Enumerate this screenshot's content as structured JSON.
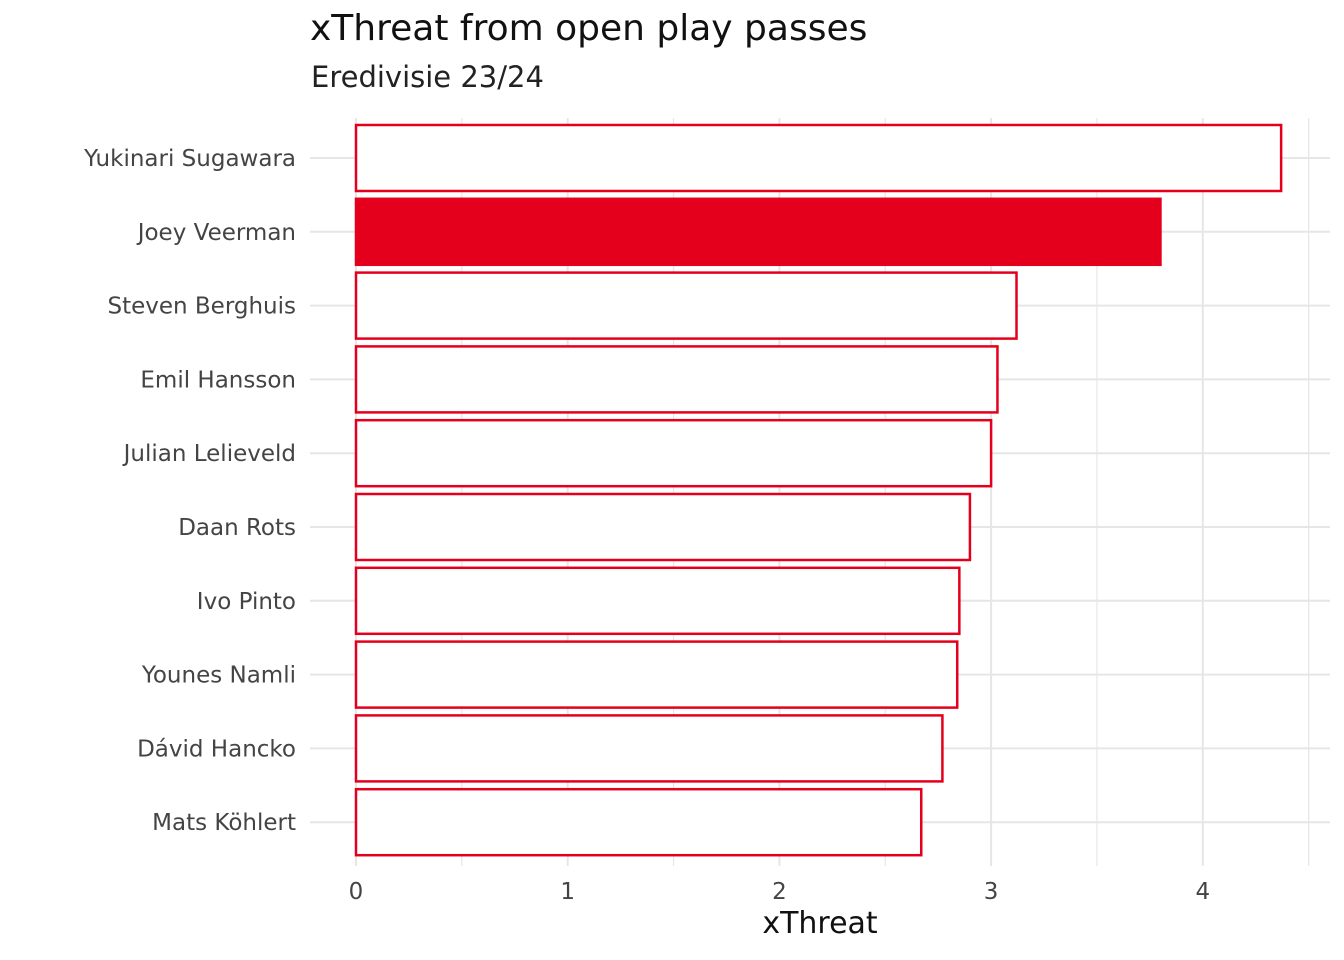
{
  "chart_data": {
    "type": "bar",
    "orientation": "horizontal",
    "title": "xThreat from open play passes",
    "subtitle": "Eredivisie 23/24",
    "xlabel": "xThreat",
    "ylabel": "",
    "categories": [
      "Yukinari Sugawara",
      "Joey Veerman",
      "Steven Berghuis",
      "Emil Hansson",
      "Julian Lelieveld",
      "Daan Rots",
      "Ivo Pinto",
      "Younes Namli",
      "Dávid Hancko",
      "Mats Köhlert"
    ],
    "values": [
      4.37,
      3.8,
      3.12,
      3.03,
      3.0,
      2.9,
      2.85,
      2.84,
      2.77,
      2.67
    ],
    "highlighted": "Joey Veerman",
    "xlim": [
      0,
      4.5
    ],
    "x_ticks": [
      0,
      1,
      2,
      3,
      4
    ],
    "x_tick_labels": [
      "0",
      "1",
      "2",
      "3",
      "4"
    ],
    "grid": true,
    "colors": {
      "accent": "#e4001d",
      "bar_fill": "#ffffff",
      "grid": "#e6e6e6"
    }
  }
}
